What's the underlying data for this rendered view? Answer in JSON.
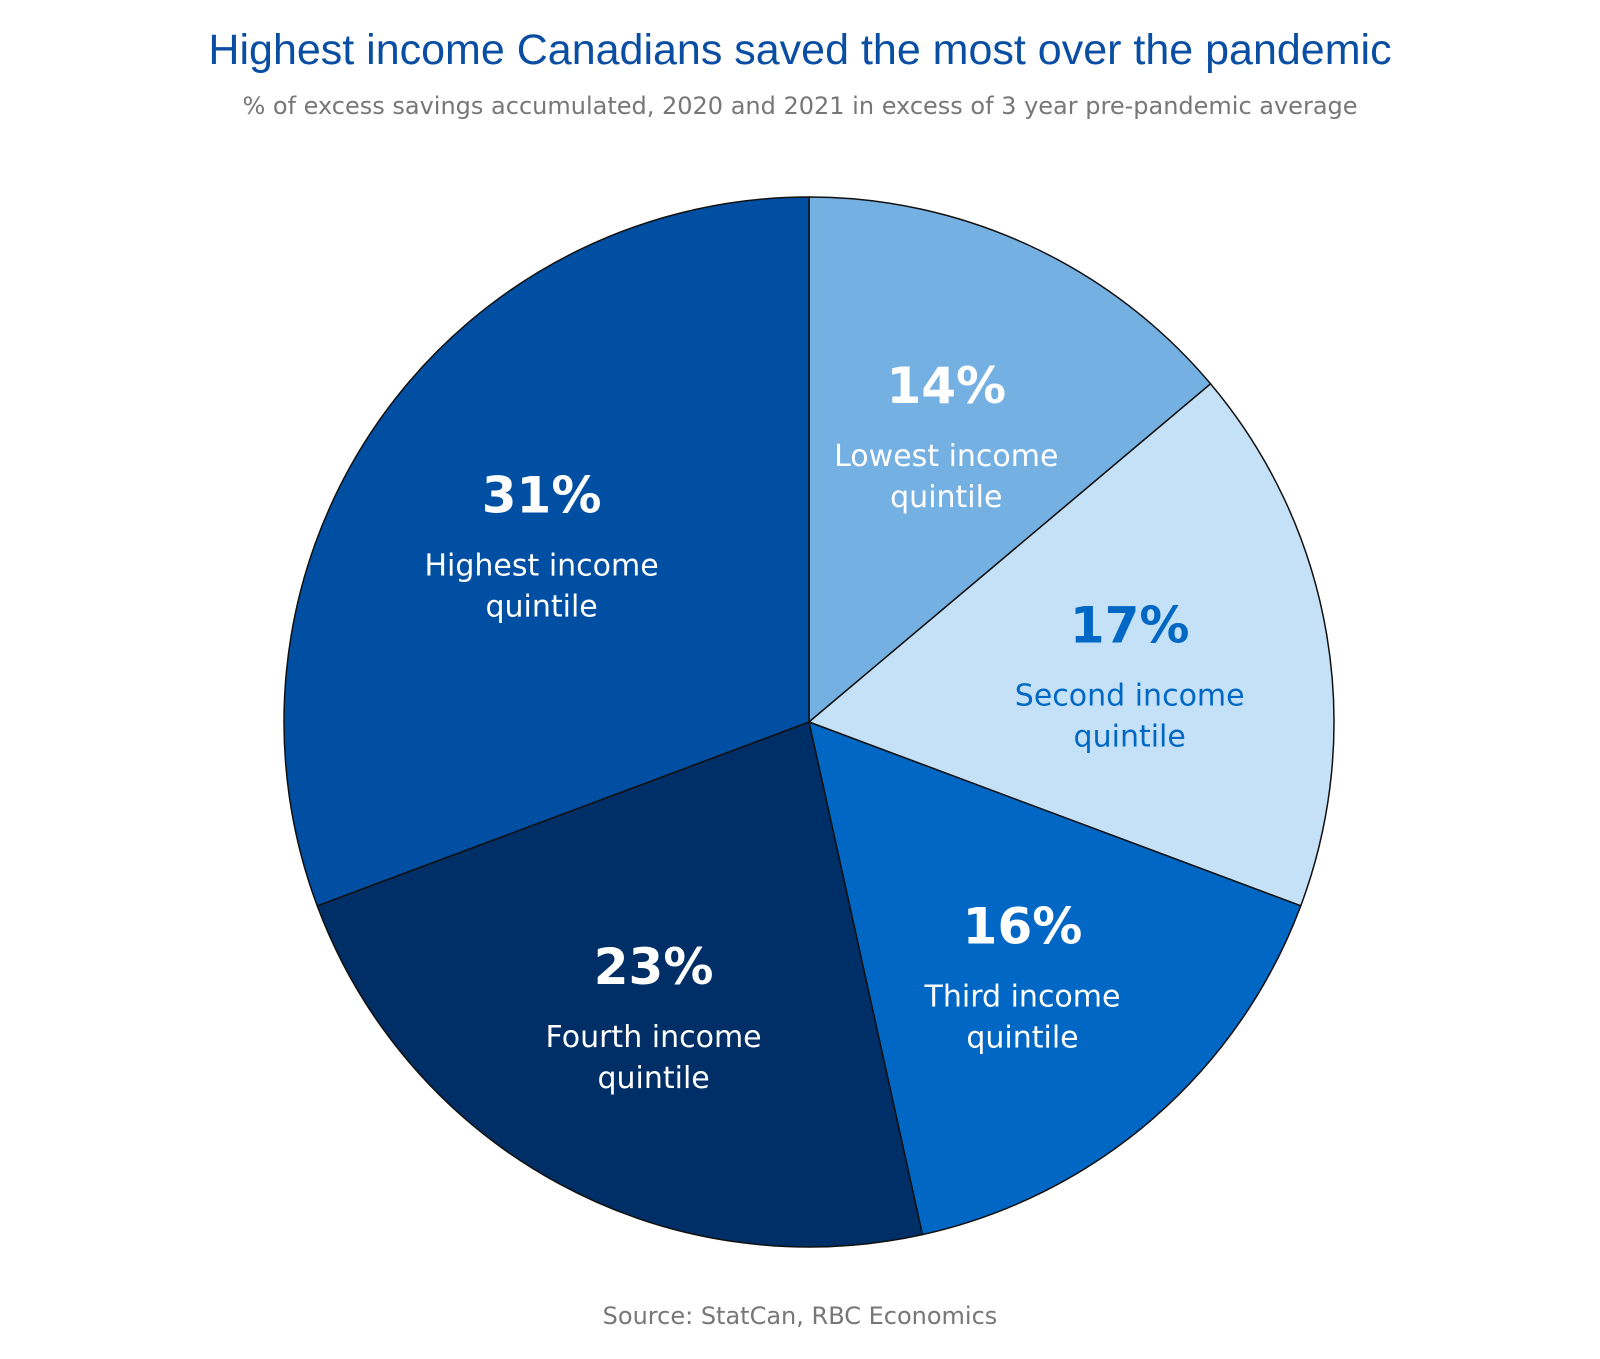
{
  "chart_data": {
    "type": "pie",
    "title": "Highest income Canadians saved the most over the pandemic",
    "subtitle": "% of excess savings accumulated, 2020 and 2021 in excess of 3 year pre-pandemic average",
    "source": "Source: StatCan, RBC Economics",
    "slices": [
      {
        "label_line1": "Lowest income",
        "label_line2": "quintile",
        "value": 14,
        "value_label": "14%",
        "color": "#75b0e3",
        "text_color": "#ffffff"
      },
      {
        "label_line1": "Second income",
        "label_line2": "quintile",
        "value": 17,
        "value_label": "17%",
        "color": "#c5e1f7",
        "text_color": "#0068c4"
      },
      {
        "label_line1": "Third income",
        "label_line2": "quintile",
        "value": 16,
        "value_label": "16%",
        "color": "#0068c4",
        "text_color": "#ffffff"
      },
      {
        "label_line1": "Fourth income",
        "label_line2": "quintile",
        "value": 23,
        "value_label": "23%",
        "color": "#002e66",
        "text_color": "#ffffff"
      },
      {
        "label_line1": "Highest income",
        "label_line2": "quintile",
        "value": 31,
        "value_label": "31%",
        "color": "#004fa3",
        "text_color": "#ffffff"
      }
    ],
    "start_angle": "12 o'clock",
    "direction": "clockwise",
    "legend": "none"
  }
}
